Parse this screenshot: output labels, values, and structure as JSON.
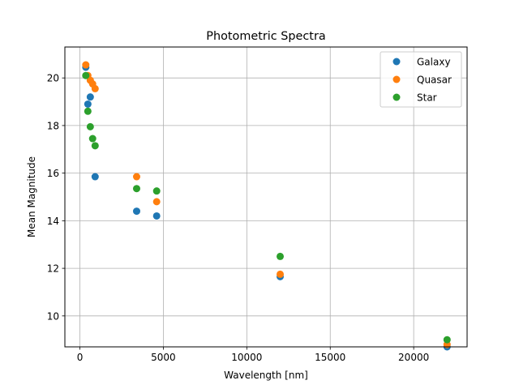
{
  "chart_data": {
    "type": "scatter",
    "title": "Photometric Spectra",
    "xlabel": "Wavelength [nm]",
    "ylabel": "Mean Magnitude",
    "xlim": [
      -900,
      23200
    ],
    "ylim": [
      8.7,
      21.3
    ],
    "xticks": [
      0,
      5000,
      10000,
      15000,
      20000
    ],
    "yticks": [
      10,
      12,
      14,
      16,
      18,
      20
    ],
    "grid": true,
    "legend_position": "top-right",
    "series": [
      {
        "name": "Galaxy",
        "color": "#1f77b4",
        "points": [
          {
            "x": 354,
            "y": 20.45
          },
          {
            "x": 477,
            "y": 18.9
          },
          {
            "x": 623,
            "y": 19.2
          },
          {
            "x": 913,
            "y": 15.85
          },
          {
            "x": 3400,
            "y": 14.4
          },
          {
            "x": 4600,
            "y": 14.2
          },
          {
            "x": 12000,
            "y": 11.65
          },
          {
            "x": 22000,
            "y": 8.7
          }
        ]
      },
      {
        "name": "Quasar",
        "color": "#ff7f0e",
        "points": [
          {
            "x": 354,
            "y": 20.55
          },
          {
            "x": 477,
            "y": 20.1
          },
          {
            "x": 623,
            "y": 19.9
          },
          {
            "x": 763,
            "y": 19.75
          },
          {
            "x": 913,
            "y": 19.55
          },
          {
            "x": 3400,
            "y": 15.85
          },
          {
            "x": 4600,
            "y": 14.8
          },
          {
            "x": 12000,
            "y": 11.75
          },
          {
            "x": 22000,
            "y": 8.8
          }
        ]
      },
      {
        "name": "Star",
        "color": "#2ca02c",
        "points": [
          {
            "x": 354,
            "y": 20.1
          },
          {
            "x": 477,
            "y": 18.6
          },
          {
            "x": 623,
            "y": 17.95
          },
          {
            "x": 763,
            "y": 17.45
          },
          {
            "x": 913,
            "y": 17.15
          },
          {
            "x": 3400,
            "y": 15.35
          },
          {
            "x": 4600,
            "y": 15.25
          },
          {
            "x": 12000,
            "y": 12.5
          },
          {
            "x": 22000,
            "y": 9.0
          }
        ]
      }
    ]
  }
}
